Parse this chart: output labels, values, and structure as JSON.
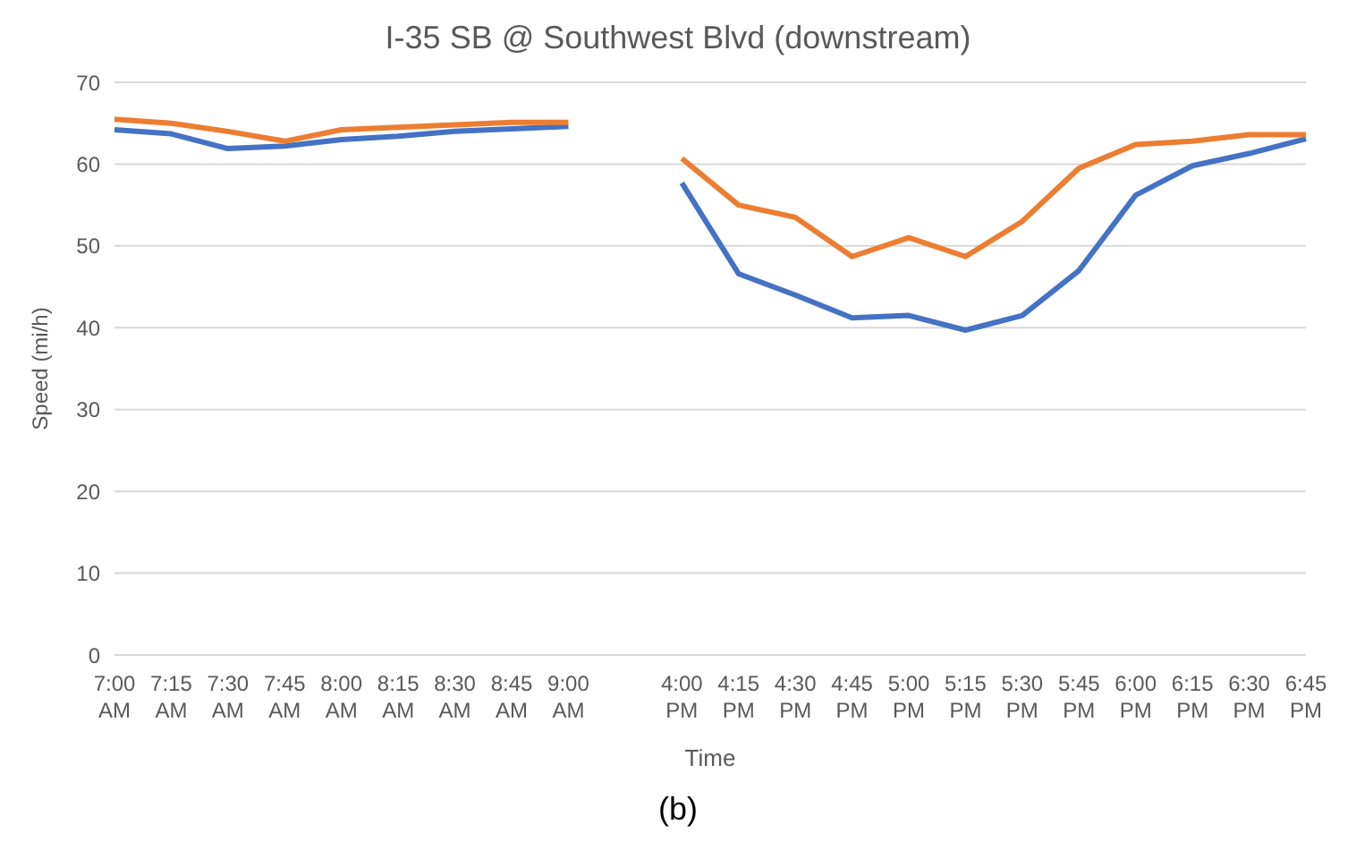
{
  "chart_data": {
    "type": "line",
    "title": "I-35 SB @ Southwest Blvd (downstream)",
    "xlabel": "Time",
    "ylabel": "Speed (mi/h)",
    "annotations": [
      "(b)"
    ],
    "categories": [
      "7:00 AM",
      "7:15 AM",
      "7:30 AM",
      "7:45 AM",
      "8:00 AM",
      "8:15 AM",
      "8:30 AM",
      "8:45 AM",
      "9:00 AM",
      null,
      "4:00 PM",
      "4:15 PM",
      "4:30 PM",
      "4:45 PM",
      "5:00 PM",
      "5:15 PM",
      "5:30 PM",
      "5:45 PM",
      "6:00 PM",
      "6:15 PM",
      "6:30 PM",
      "6:45 PM"
    ],
    "series": [
      {
        "color": "#4472c4",
        "values": [
          64.2,
          63.7,
          61.9,
          62.2,
          63.0,
          63.4,
          64.0,
          64.3,
          64.6,
          null,
          57.7,
          46.6,
          44.0,
          41.2,
          41.5,
          39.7,
          41.5,
          47.0,
          56.2,
          59.8,
          61.3,
          63.1
        ]
      },
      {
        "color": "#ed7d31",
        "values": [
          65.5,
          65.0,
          64.0,
          62.8,
          64.2,
          64.5,
          64.8,
          65.1,
          65.1,
          null,
          60.7,
          55.0,
          53.5,
          48.7,
          51.0,
          48.7,
          53.0,
          59.5,
          62.4,
          62.8,
          63.6,
          63.6
        ]
      }
    ],
    "ylim": [
      0,
      70
    ],
    "yticks": [
      0,
      10,
      20,
      30,
      40,
      50,
      60,
      70
    ],
    "grid": "y",
    "legend": false,
    "marker": "none",
    "line_style": "solid"
  }
}
